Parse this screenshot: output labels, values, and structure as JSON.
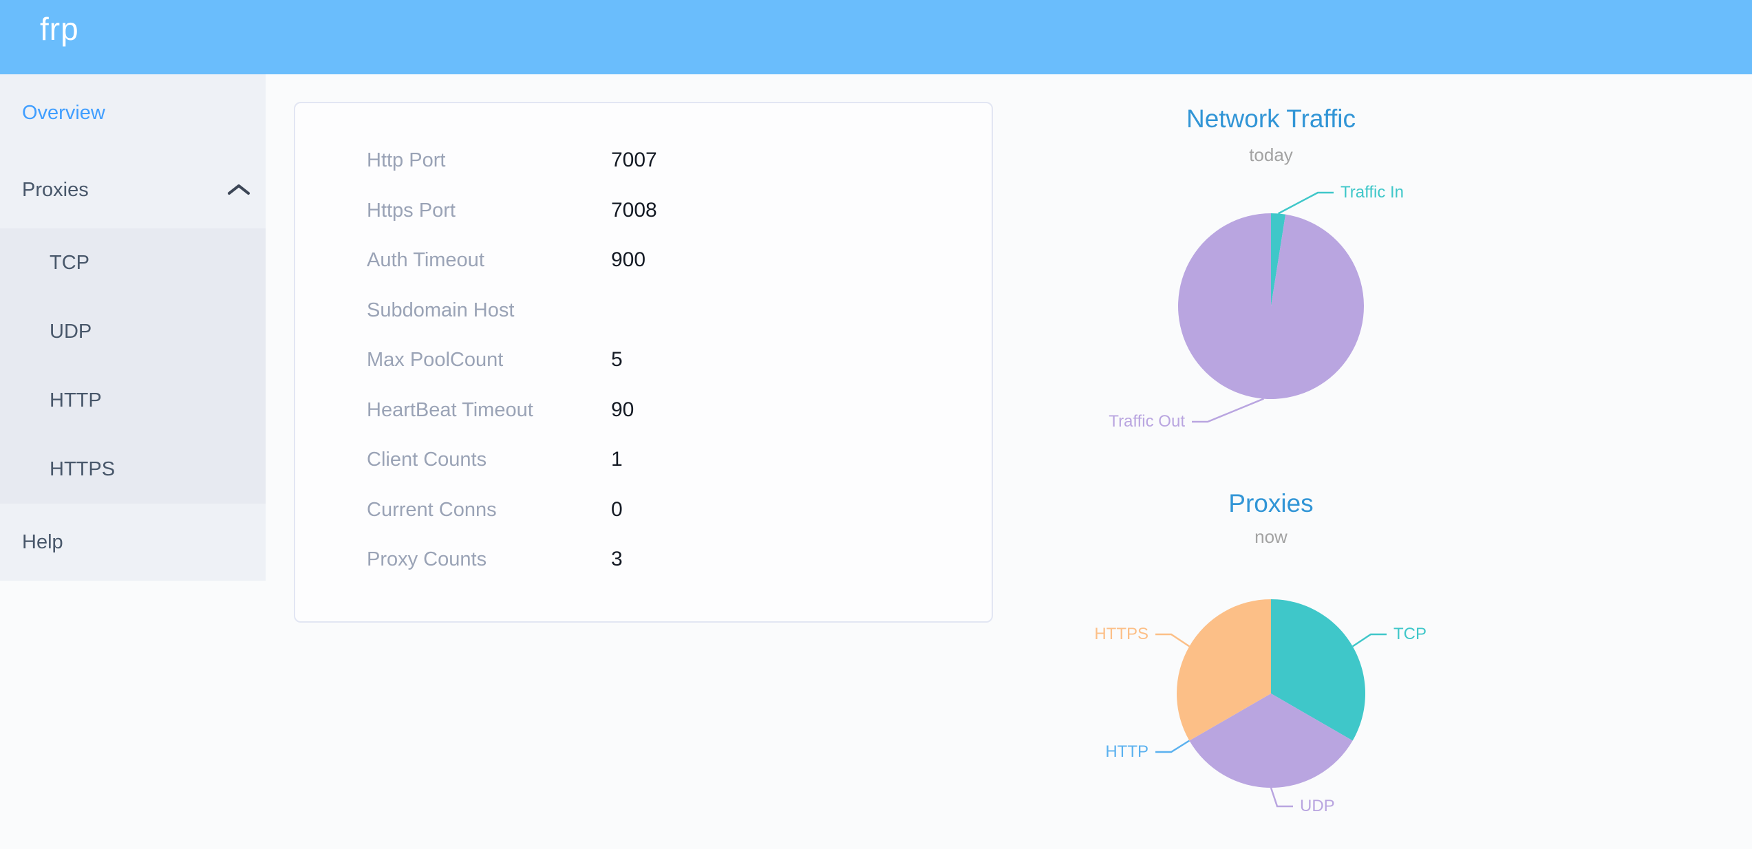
{
  "header": {
    "logo": "frp"
  },
  "sidebar": {
    "overview": "Overview",
    "proxies": "Proxies",
    "proxy_types": [
      "TCP",
      "UDP",
      "HTTP",
      "HTTPS"
    ],
    "help": "Help"
  },
  "server_info": {
    "rows": [
      {
        "label": "Http Port",
        "value": "7007"
      },
      {
        "label": "Https Port",
        "value": "7008"
      },
      {
        "label": "Auth Timeout",
        "value": "900"
      },
      {
        "label": "Subdomain Host",
        "value": ""
      },
      {
        "label": "Max PoolCount",
        "value": "5"
      },
      {
        "label": "HeartBeat Timeout",
        "value": "90"
      },
      {
        "label": "Client Counts",
        "value": "1"
      },
      {
        "label": "Current Conns",
        "value": "0"
      },
      {
        "label": "Proxy Counts",
        "value": "3"
      }
    ]
  },
  "chart_data": [
    {
      "type": "pie",
      "title": "Network Traffic",
      "subtitle": "today",
      "legend_position": "none",
      "series": [
        {
          "name": "Traffic In",
          "value": 2.5,
          "color": "#3fc7c9"
        },
        {
          "name": "Traffic Out",
          "value": 97.5,
          "color": "#b9a5e0"
        }
      ]
    },
    {
      "type": "pie",
      "title": "Proxies",
      "subtitle": "now",
      "legend_position": "none",
      "series": [
        {
          "name": "TCP",
          "value": 1,
          "color": "#3fc7c9"
        },
        {
          "name": "UDP",
          "value": 1,
          "color": "#b9a5e0"
        },
        {
          "name": "HTTP",
          "value": 0,
          "color": "#5ab1ef"
        },
        {
          "name": "HTTPS",
          "value": 1,
          "color": "#fcbf87"
        }
      ]
    }
  ],
  "colors": {
    "header_bg": "#6abdfc",
    "sidebar_bg": "#eef1f6",
    "submenu_bg": "#e7eaf1",
    "active_item": "#409eff",
    "menu_text": "#48576a",
    "chart_title": "#3195d6",
    "card_label": "#9aa3b6"
  }
}
